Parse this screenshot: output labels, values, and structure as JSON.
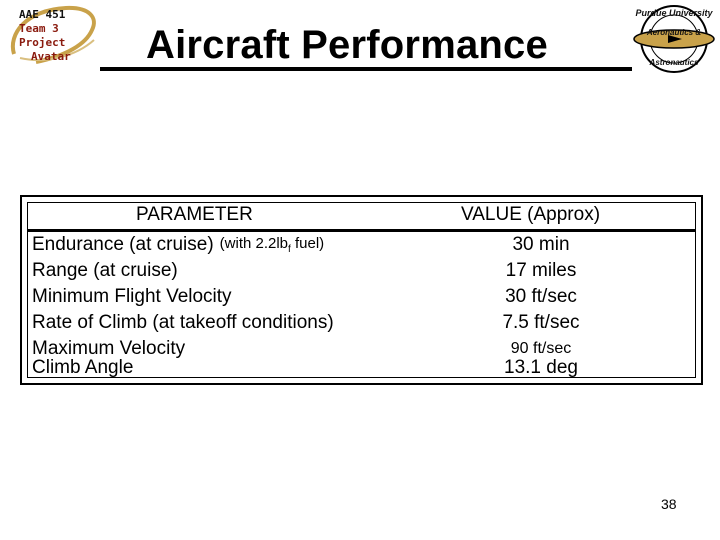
{
  "team_logo": {
    "line1": "AAE 451",
    "line2": "Team 3",
    "line3": "Project",
    "line4": "Avatar"
  },
  "title": "Aircraft Performance",
  "purdue_logo": {
    "ring_top": "Purdue University",
    "ring_mid": "Aeronautics &",
    "ring_bottom": "Astronautics"
  },
  "table": {
    "headers": {
      "parameter": "PARAMETER",
      "value": "VALUE (Approx)"
    },
    "rows": [
      {
        "parameter": "Endurance (at cruise)",
        "value": "30 min"
      },
      {
        "parameter": "Range (at cruise)",
        "value": "17 miles"
      },
      {
        "parameter": "Minimum Flight Velocity",
        "value": "30 ft/sec"
      },
      {
        "parameter": "Rate of Climb (at takeoff conditions)",
        "value": "7.5 ft/sec"
      },
      {
        "parameter": "Maximum Velocity",
        "value": "90 ft/sec"
      },
      {
        "parameter": "Climb Angle",
        "value": "13.1 deg"
      }
    ],
    "endurance_note": {
      "prefix": "(with 2.2lb",
      "subscript": "f",
      "suffix": " fuel)"
    }
  },
  "page_number": "38",
  "colors": {
    "team_text": "#8a1a0e",
    "logo_gold": "#c9a24a"
  }
}
